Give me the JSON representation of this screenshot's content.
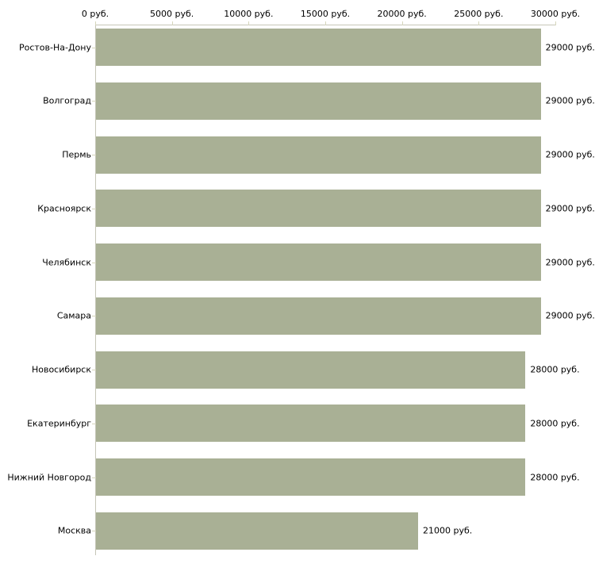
{
  "chart_data": {
    "type": "bar",
    "orientation": "horizontal",
    "title": "",
    "xlabel": "",
    "ylabel": "",
    "categories": [
      "Ростов-На-Дону",
      "Волгоград",
      "Пермь",
      "Красноярск",
      "Челябинск",
      "Самара",
      "Новосибирск",
      "Екатеринбург",
      "Нижний Новгород",
      "Москва"
    ],
    "values": [
      29000,
      29000,
      29000,
      29000,
      29000,
      29000,
      28000,
      28000,
      28000,
      21000
    ],
    "value_labels": [
      "29000 руб.",
      "29000 руб.",
      "29000 руб.",
      "29000 руб.",
      "29000 руб.",
      "29000 руб.",
      "28000 руб.",
      "28000 руб.",
      "28000 руб.",
      "21000 руб."
    ],
    "x_ticks": {
      "labels": [
        "0 руб.",
        "5000 руб.",
        "10000 руб.",
        "15000 руб.",
        "20000 руб.",
        "25000 руб.",
        "30000 руб."
      ],
      "values": [
        0,
        5000,
        10000,
        15000,
        20000,
        25000,
        30000
      ]
    },
    "xlim": [
      0,
      30000
    ],
    "grid": false,
    "legend": null,
    "colors": {
      "bar_fill": "#a9b095",
      "axis_line": "#c6c6b8",
      "tick_mark": "#d6d6bc",
      "text": "#000000",
      "background": "#ffffff"
    }
  }
}
